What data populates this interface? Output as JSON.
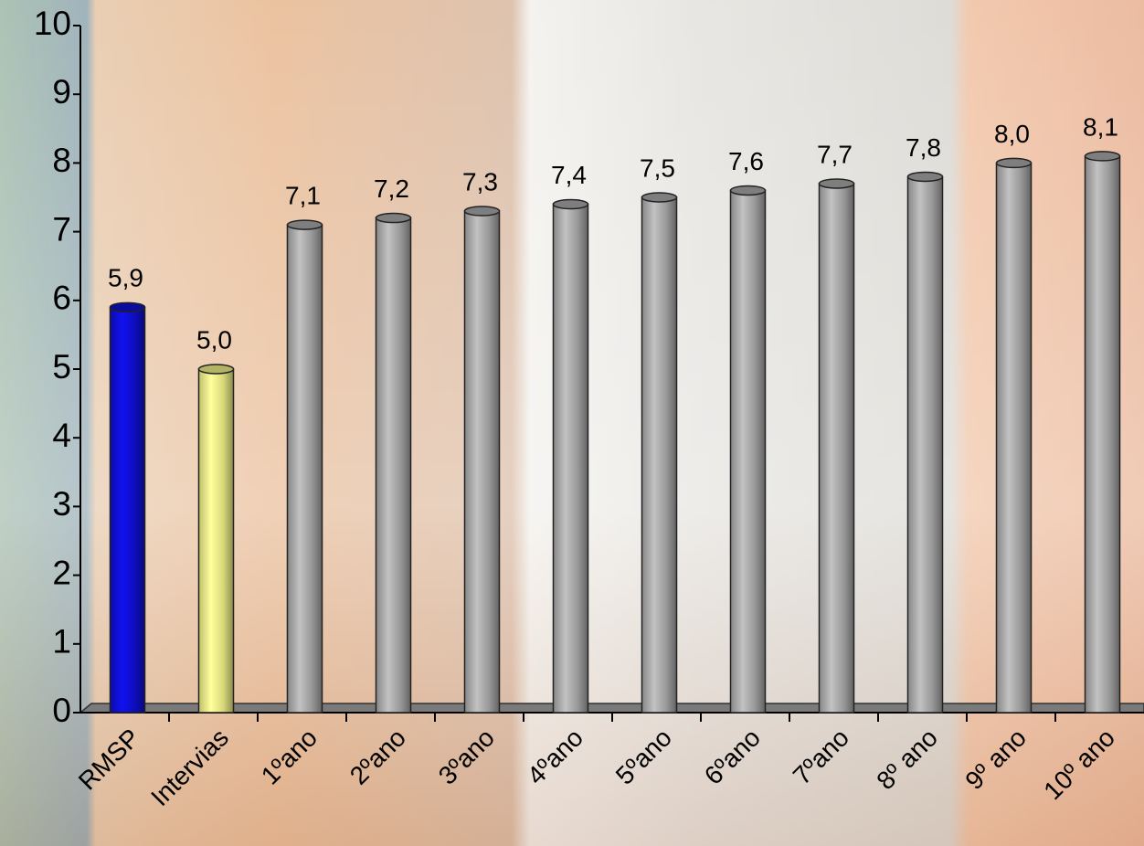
{
  "chart_data": {
    "type": "bar",
    "categories": [
      "RMSP",
      "Intervias",
      "1ºano",
      "2ºano",
      "3ºano",
      "4ºano",
      "5ºano",
      "6ºano",
      "7ºano",
      "8º ano",
      "9º ano",
      "10º ano"
    ],
    "values": [
      5.9,
      5.0,
      7.1,
      7.2,
      7.3,
      7.4,
      7.5,
      7.6,
      7.7,
      7.8,
      8.0,
      8.1
    ],
    "value_labels": [
      "5,9",
      "5,0",
      "7,1",
      "7,2",
      "7,3",
      "7,4",
      "7,5",
      "7,6",
      "7,7",
      "7,8",
      "8,0",
      "8,1"
    ],
    "colors": [
      "#1010e0",
      "#ffff90",
      "#b4b4b4",
      "#b4b4b4",
      "#b4b4b4",
      "#b4b4b4",
      "#b4b4b4",
      "#b4b4b4",
      "#b4b4b4",
      "#b4b4b4",
      "#b4b4b4",
      "#b4b4b4"
    ],
    "ylim": [
      0,
      10
    ],
    "yticks": [
      0,
      1,
      2,
      3,
      4,
      5,
      6,
      7,
      8,
      9,
      10
    ],
    "grid": false
  }
}
